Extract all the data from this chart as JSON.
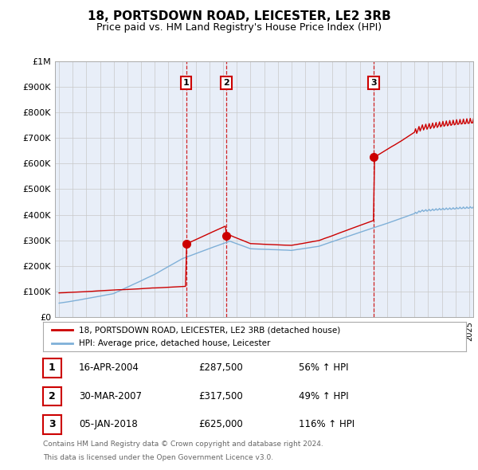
{
  "title": "18, PORTSDOWN ROAD, LEICESTER, LE2 3RB",
  "subtitle": "Price paid vs. HM Land Registry's House Price Index (HPI)",
  "ylim": [
    0,
    1000000
  ],
  "yticks": [
    0,
    100000,
    200000,
    300000,
    400000,
    500000,
    600000,
    700000,
    800000,
    900000,
    1000000
  ],
  "ytick_labels": [
    "£0",
    "£100K",
    "£200K",
    "£300K",
    "£400K",
    "£500K",
    "£600K",
    "£700K",
    "£800K",
    "£900K",
    "£1M"
  ],
  "background_color": "#ffffff",
  "plot_bg_color": "#e8eef8",
  "grid_color": "#c8c8c8",
  "sale_color": "#cc0000",
  "hpi_color": "#7fb0d8",
  "vline_color": "#cc0000",
  "transactions": [
    {
      "num": 1,
      "date_year": 2004.29,
      "price": 287500,
      "label": "16-APR-2004",
      "pct": "56%",
      "dir": "↑"
    },
    {
      "num": 2,
      "date_year": 2007.24,
      "price": 317500,
      "label": "30-MAR-2007",
      "pct": "49%",
      "dir": "↑"
    },
    {
      "num": 3,
      "date_year": 2018.01,
      "price": 625000,
      "label": "05-JAN-2018",
      "pct": "116%",
      "dir": "↑"
    }
  ],
  "legend_sale": "18, PORTSDOWN ROAD, LEICESTER, LE2 3RB (detached house)",
  "legend_hpi": "HPI: Average price, detached house, Leicester",
  "footnote1": "Contains HM Land Registry data © Crown copyright and database right 2024.",
  "footnote2": "This data is licensed under the Open Government Licence v3.0.",
  "title_fontsize": 11,
  "subtitle_fontsize": 9,
  "tick_fontsize": 8,
  "x_start_year": 1995,
  "x_end_year": 2025
}
